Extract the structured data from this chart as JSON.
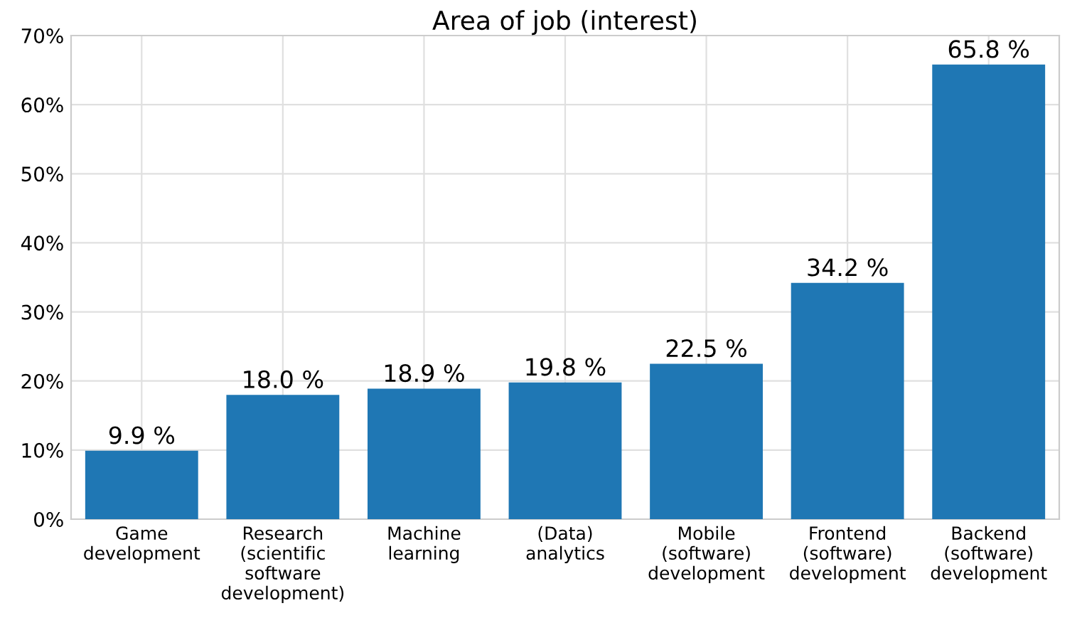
{
  "chart_data": {
    "type": "bar",
    "title": "Area of job (interest)",
    "categories": [
      "Game\ndevelopment",
      "Research\n(scientific\nsoftware\ndevelopment)",
      "Machine\nlearning",
      "(Data)\nanalytics",
      "Mobile\n(software)\ndevelopment",
      "Frontend\n(software)\ndevelopment",
      "Backend\n(software)\ndevelopment"
    ],
    "values": [
      9.9,
      18.0,
      18.9,
      19.8,
      22.5,
      34.2,
      65.8
    ],
    "value_labels": [
      "9.9 %",
      "18.0 %",
      "18.9 %",
      "19.8 %",
      "22.5 %",
      "34.2 %",
      "65.8 %"
    ],
    "color": "#1f77b4",
    "ylim": [
      0,
      70
    ],
    "yticks": [
      {
        "value": 0,
        "label": "0%"
      },
      {
        "value": 10,
        "label": "10%"
      },
      {
        "value": 20,
        "label": "20%"
      },
      {
        "value": 30,
        "label": "30%"
      },
      {
        "value": 40,
        "label": "40%"
      },
      {
        "value": 50,
        "label": "50%"
      },
      {
        "value": 60,
        "label": "60%"
      },
      {
        "value": 70,
        "label": "70%"
      }
    ],
    "grid": true
  }
}
